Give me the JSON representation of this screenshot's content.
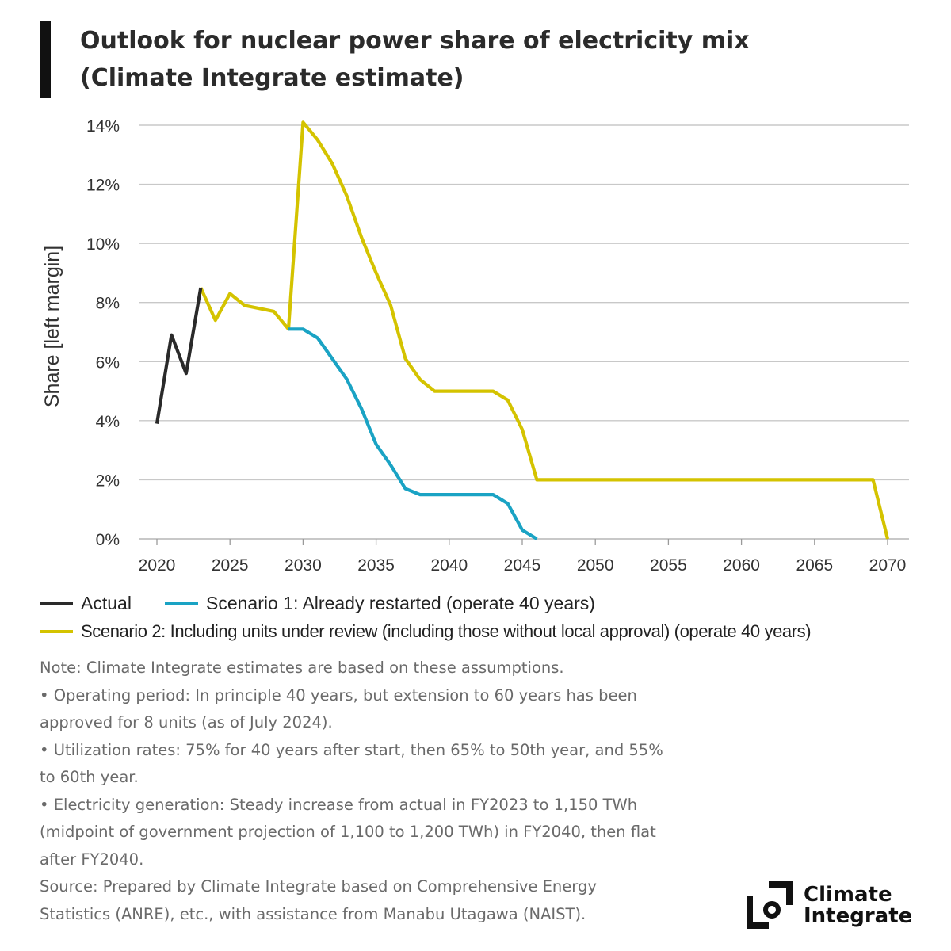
{
  "title": {
    "line1": "Outlook for nuclear power share of electricity mix",
    "line2": "(Climate Integrate estimate)"
  },
  "chart_data": {
    "type": "line",
    "title": "Outlook for nuclear power share of electricity mix (Climate Integrate estimate)",
    "ylabel": "Share [left margin]",
    "xlabel": "",
    "xlim": [
      2020,
      2070
    ],
    "ylim": [
      0,
      14
    ],
    "grid": true,
    "xticks": [
      "2020",
      "2025",
      "2030",
      "2035",
      "2040",
      "2045",
      "2050",
      "2055",
      "2060",
      "2065",
      "2070"
    ],
    "yticks": [
      "0%",
      "2%",
      "4%",
      "6%",
      "8%",
      "10%",
      "12%",
      "14%"
    ],
    "ytick_values": [
      0,
      2,
      4,
      6,
      8,
      10,
      12,
      14
    ],
    "xtick_values": [
      2020,
      2025,
      2030,
      2035,
      2040,
      2045,
      2050,
      2055,
      2060,
      2065,
      2070
    ],
    "legend_position": "bottom",
    "series": [
      {
        "name": "Scenario 2: Including units under review (including those without local approval) (operate 40 years)",
        "color": "#d4c300",
        "x": [
          2023,
          2024,
          2025,
          2026,
          2027,
          2028,
          2029,
          2030,
          2031,
          2032,
          2033,
          2034,
          2035,
          2036,
          2037,
          2038,
          2039,
          2040,
          2041,
          2042,
          2043,
          2044,
          2045,
          2046,
          2069,
          2070
        ],
        "y": [
          8.5,
          7.4,
          8.3,
          7.9,
          7.8,
          7.7,
          7.1,
          14.1,
          13.5,
          12.7,
          11.6,
          10.2,
          9.0,
          7.9,
          6.1,
          5.4,
          5.0,
          5.0,
          5.0,
          5.0,
          5.0,
          4.7,
          3.7,
          2.0,
          2.0,
          0.0
        ]
      },
      {
        "name": "Scenario 1: Already restarted (operate 40 years)",
        "color": "#1aa3c4",
        "x": [
          2029,
          2030,
          2031,
          2032,
          2033,
          2034,
          2035,
          2036,
          2037,
          2038,
          2039,
          2040,
          2041,
          2042,
          2043,
          2044,
          2045,
          2046
        ],
        "y": [
          7.1,
          7.1,
          6.8,
          6.1,
          5.4,
          4.4,
          3.2,
          2.5,
          1.7,
          1.5,
          1.5,
          1.5,
          1.5,
          1.5,
          1.5,
          1.2,
          0.3,
          0.0
        ]
      },
      {
        "name": "Actual",
        "color": "#2a2a2a",
        "x": [
          2020,
          2021,
          2022,
          2023
        ],
        "y": [
          3.9,
          6.9,
          5.6,
          8.5
        ]
      }
    ]
  },
  "legend": {
    "actual": "Actual",
    "scenario1": "Scenario 1: Already restarted (operate 40 years)",
    "scenario2": "Scenario 2: Including units under review (including those without local approval) (operate 40 years)"
  },
  "notes": [
    "Note: Climate Integrate estimates are based on these assumptions.",
    "• Operating period: In principle 40 years, but extension to 60 years has been",
    "approved for 8 units (as of July 2024).",
    "• Utilization rates: 75% for 40 years after start, then 65% to 50th year, and 55%",
    "to 60th year.",
    "• Electricity generation: Steady increase from actual in FY2023 to 1,150 TWh",
    "(midpoint of government projection of 1,100 to 1,200 TWh) in FY2040, then flat",
    "after FY2040.",
    "Source: Prepared by Climate Integrate based on Comprehensive Energy",
    "Statistics (ANRE), etc., with assistance from Manabu Utagawa (NAIST)."
  ],
  "logo": {
    "line1": "Climate",
    "line2": "Integrate"
  },
  "colors": {
    "actual": "#2a2a2a",
    "scenario1": "#1aa3c4",
    "scenario2": "#d4c300",
    "grid": "#c8c8c8"
  }
}
